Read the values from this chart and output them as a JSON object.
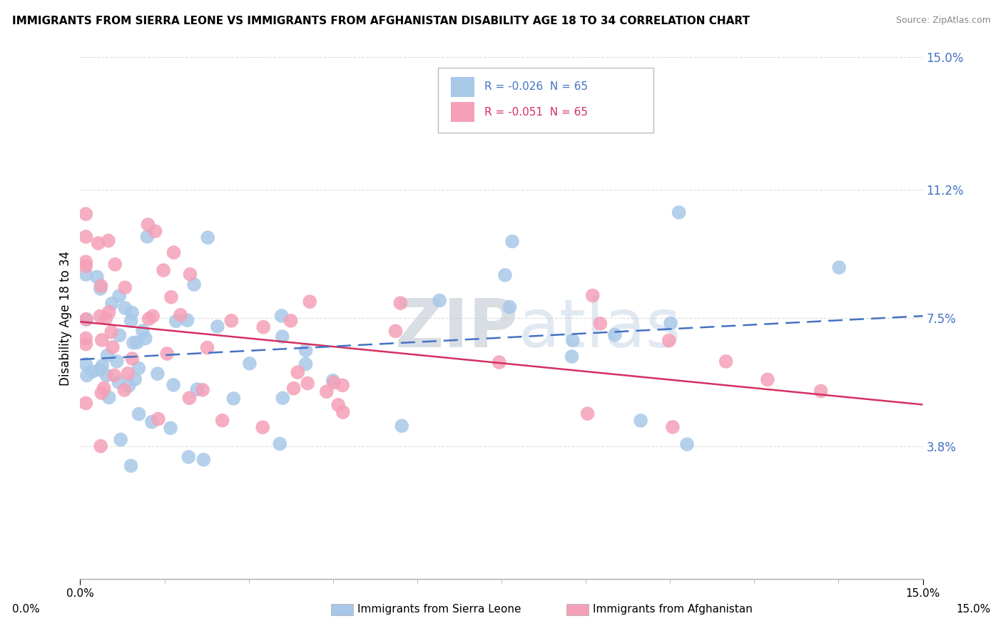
{
  "title": "IMMIGRANTS FROM SIERRA LEONE VS IMMIGRANTS FROM AFGHANISTAN DISABILITY AGE 18 TO 34 CORRELATION CHART",
  "source": "Source: ZipAtlas.com",
  "ylabel": "Disability Age 18 to 34",
  "xlim": [
    0,
    0.15
  ],
  "ylim": [
    0,
    0.15
  ],
  "ytick_values": [
    0.038,
    0.075,
    0.112,
    0.15
  ],
  "ytick_labels": [
    "3.8%",
    "7.5%",
    "11.2%",
    "15.0%"
  ],
  "series1_name": "Immigrants from Sierra Leone",
  "series1_color": "#a8c8e8",
  "series1_line_color": "#4472c4",
  "series1_R": -0.026,
  "series1_N": 65,
  "series2_name": "Immigrants from Afghanistan",
  "series2_color": "#f4a0b8",
  "series2_line_color": "#d43060",
  "series2_R": -0.051,
  "series2_N": 65,
  "watermark_zip": "ZIP",
  "watermark_atlas": "atlas",
  "background_color": "#ffffff",
  "grid_color": "#dddddd"
}
